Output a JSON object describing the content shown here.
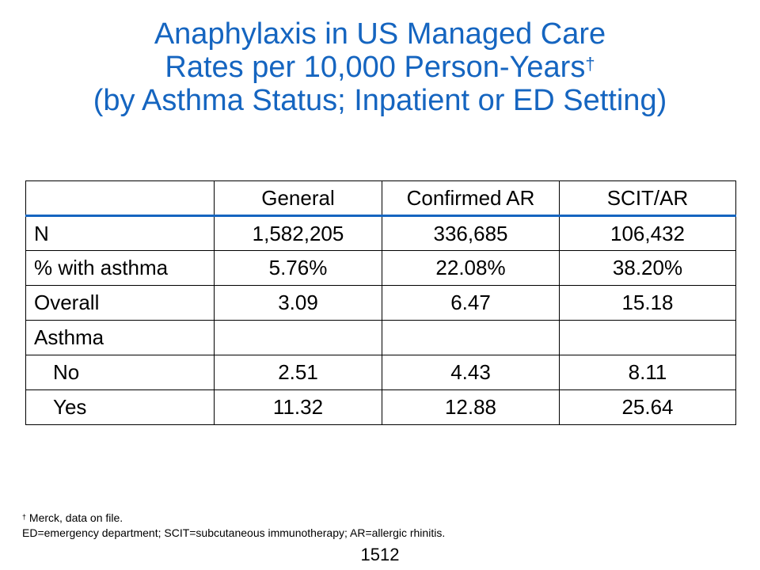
{
  "title": {
    "line1": "Anaphylaxis in US Managed Care",
    "line2": "Rates per 10,000 Person-Years",
    "line2_mark": "†",
    "line3": "(by Asthma Status; Inpatient or ED Setting)"
  },
  "table": {
    "headers": [
      "",
      "General",
      "Confirmed AR",
      "SCIT/AR"
    ],
    "rows": [
      {
        "label": "N",
        "values": [
          "1,582,205",
          "336,685",
          "106,432"
        ]
      },
      {
        "label": "% with asthma",
        "values": [
          "5.76%",
          "22.08%",
          "38.20%"
        ]
      },
      {
        "label": "Overall",
        "values": [
          "3.09",
          "6.47",
          "15.18"
        ]
      },
      {
        "label": "Asthma",
        "values": [
          "",
          "",
          ""
        ]
      },
      {
        "label": "No",
        "values": [
          "2.51",
          "4.43",
          "8.11"
        ]
      },
      {
        "label": "Yes",
        "values": [
          "11.32",
          "12.88",
          "25.64"
        ]
      }
    ]
  },
  "footnotes": {
    "mark": "†",
    "line1": " Merck, data on file.",
    "line2": "ED=emergency department; SCIT=subcutaneous immunotherapy; AR=allergic rhinitis."
  },
  "page_number": "1512",
  "colors": {
    "title": "#1565C0",
    "header_rule": "#1565C0",
    "text": "#000000"
  }
}
